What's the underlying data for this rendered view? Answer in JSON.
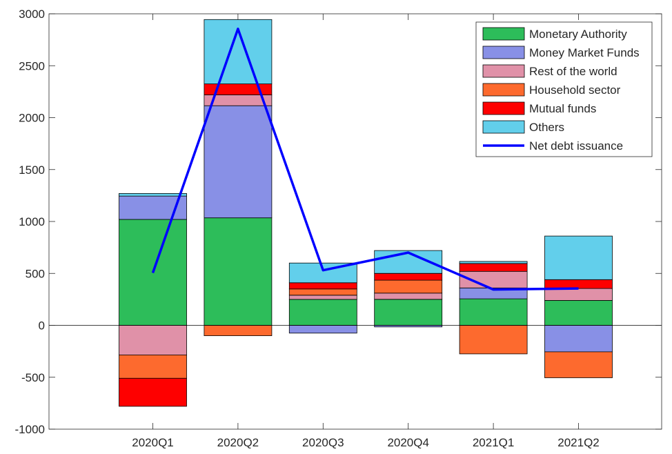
{
  "chart_data": {
    "type": "bar",
    "categories": [
      "2020Q1",
      "2020Q2",
      "2020Q3",
      "2020Q4",
      "2021Q1",
      "2021Q2"
    ],
    "ylim": [
      -1000,
      3000
    ],
    "yticks": [
      -1000,
      -500,
      0,
      500,
      1000,
      1500,
      2000,
      2500,
      3000
    ],
    "grid": false,
    "legend_position": "top-right",
    "series": [
      {
        "name": "Monetary Authority",
        "color": "#2dbd5a",
        "values": [
          1020,
          1035,
          250,
          250,
          255,
          240
        ]
      },
      {
        "name": "Money Market Funds",
        "color": "#8890e6",
        "values": [
          225,
          1080,
          -75,
          -15,
          105,
          -255
        ]
      },
      {
        "name": "Rest of the world",
        "color": "#e091a8",
        "values": [
          -285,
          105,
          40,
          60,
          160,
          115
        ]
      },
      {
        "name": "Household sector",
        "color": "#fd6a2e",
        "values": [
          -225,
          -100,
          60,
          125,
          -275,
          -250
        ]
      },
      {
        "name": "Mutual funds",
        "color": "#fe0000",
        "values": [
          -270,
          105,
          60,
          65,
          75,
          85
        ]
      },
      {
        "name": "Others",
        "color": "#62cfeb",
        "values": [
          25,
          620,
          190,
          220,
          20,
          420
        ]
      }
    ],
    "line": {
      "name": "Net debt issuance",
      "color": "#0000ff",
      "values": [
        505,
        2855,
        530,
        700,
        345,
        355
      ]
    }
  }
}
